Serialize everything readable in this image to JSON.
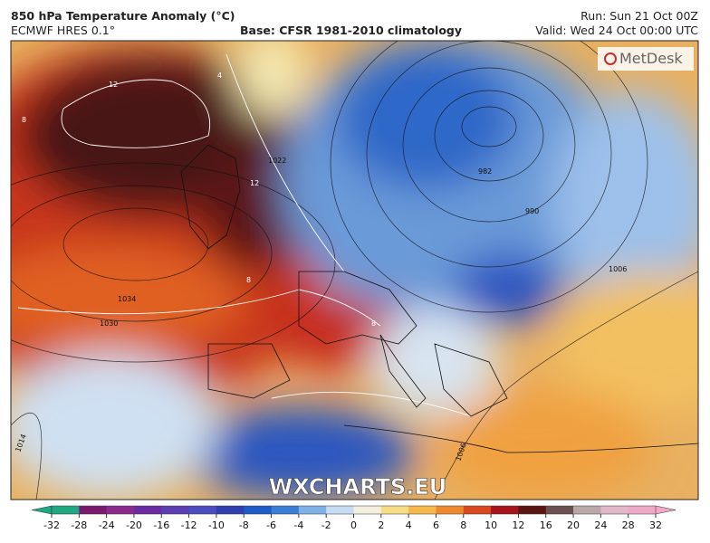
{
  "header": {
    "title": "850 hPa Temperature Anomaly (°C)",
    "model": "ECMWF HRES 0.1°",
    "base": "Base: CFSR 1981-2010 climatology",
    "run": "Run: Sun 21 Oct 00Z",
    "valid": "Valid: Wed 24 Oct 00:00 UTC"
  },
  "logo": "MetDesk",
  "watermark": "WXCHARTS.EU",
  "contour_labels": [
    "12",
    "12",
    "8",
    "8",
    "1022",
    "1034",
    "1030",
    "1014",
    "1006",
    "1006",
    "982",
    "990",
    "4",
    "8"
  ],
  "colorbar": {
    "ticks": [
      -32,
      -28,
      -24,
      -20,
      -16,
      -12,
      -10,
      -8,
      -6,
      -4,
      -2,
      0,
      2,
      4,
      6,
      8,
      10,
      12,
      16,
      20,
      24,
      28,
      32
    ],
    "colors": [
      "#1fa882",
      "#7a1a6e",
      "#8a2a8c",
      "#6a2aa0",
      "#5b3fb0",
      "#4a4cc0",
      "#2f3fb0",
      "#1e5ac8",
      "#3a7ed8",
      "#7fb0e8",
      "#c6dcf3",
      "#f4f0e0",
      "#f7dc86",
      "#f5b84a",
      "#ee8a2c",
      "#d9481e",
      "#a8141c",
      "#5a1414",
      "#6a5050",
      "#b8a8a8",
      "#e2b8c8",
      "#f0a8c8"
    ]
  }
}
